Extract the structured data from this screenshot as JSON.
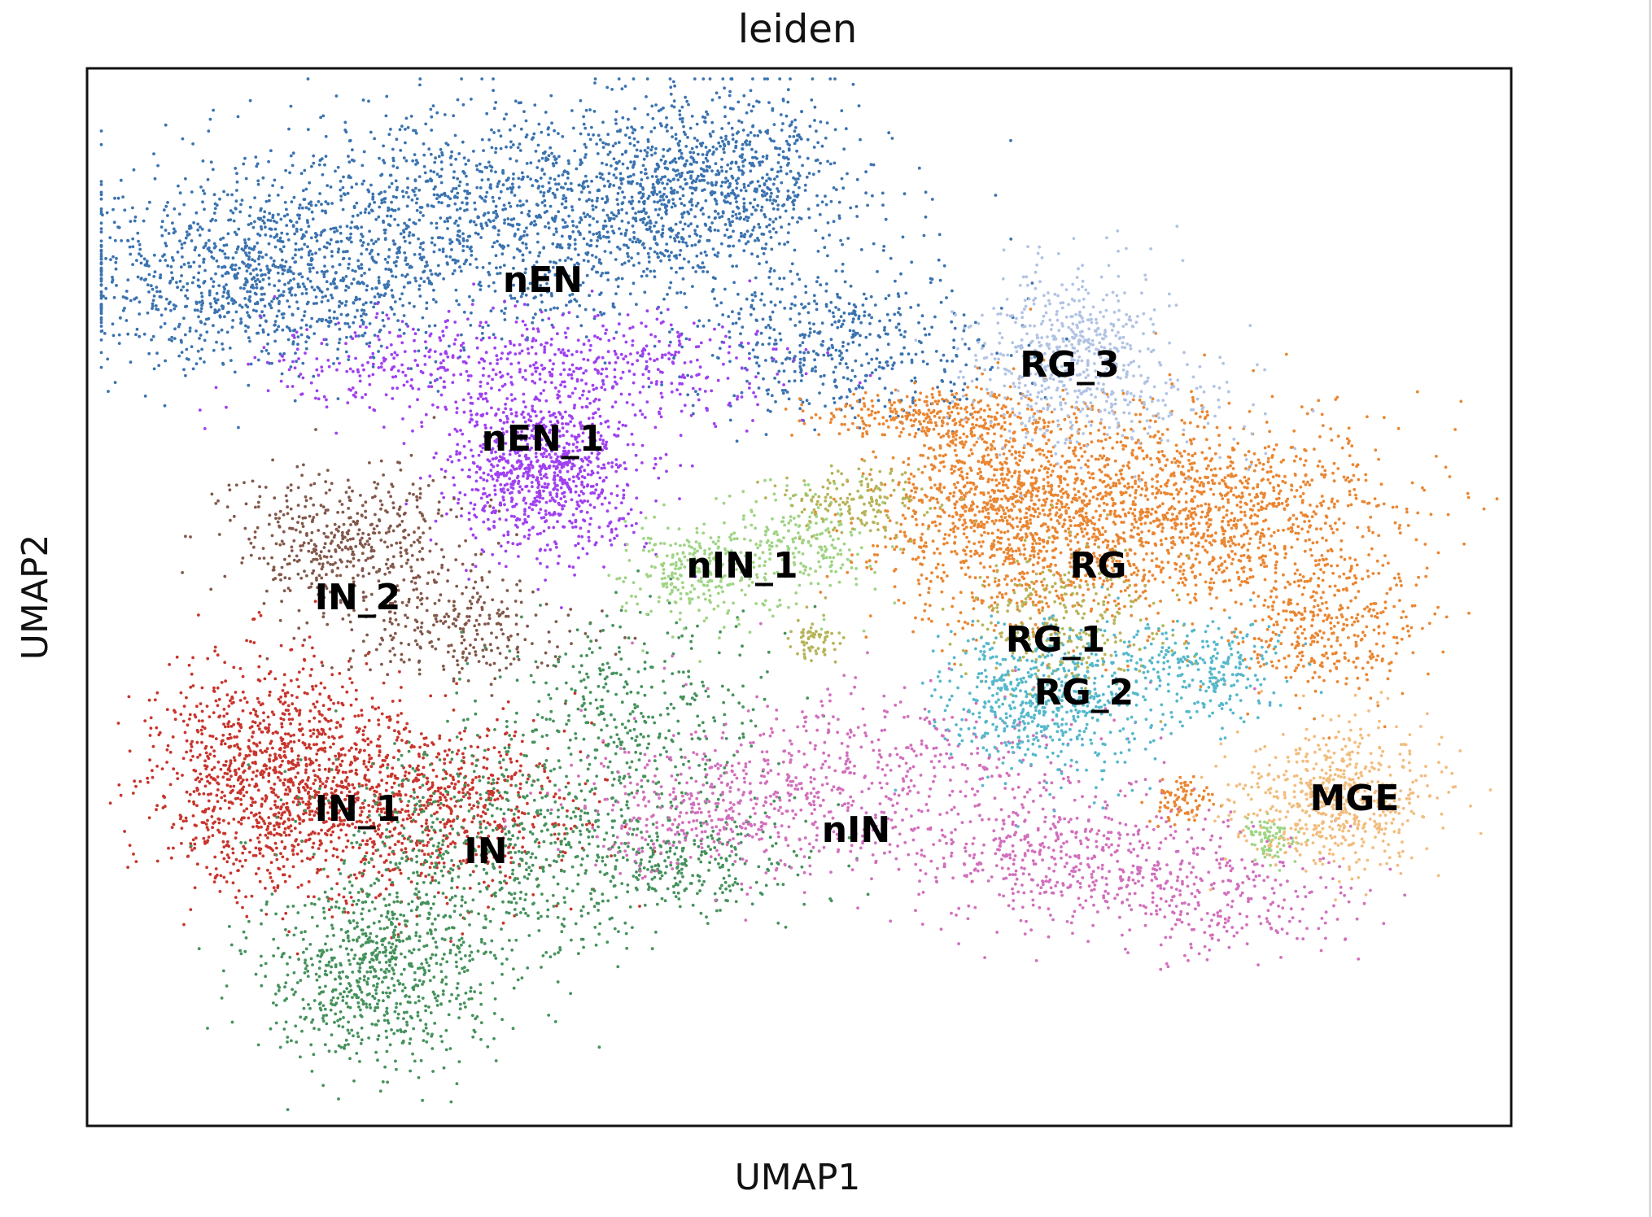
{
  "chart_data": {
    "type": "scatter",
    "title": "leiden",
    "xlabel": "UMAP1",
    "ylabel": "UMAP2",
    "xlim": [
      0,
      100
    ],
    "ylim": [
      0,
      100
    ],
    "grid": false,
    "ticks": false,
    "legend": "on data",
    "series": [
      {
        "name": "nEN",
        "color": "#3b73b0",
        "center": [
          32,
          80
        ],
        "clusters": [
          [
            12,
            80,
            8,
            5,
            1800
          ],
          [
            30,
            86,
            13,
            6,
            3000
          ],
          [
            44,
            90,
            5,
            5,
            1300
          ],
          [
            53,
            74,
            7,
            4,
            900
          ]
        ]
      },
      {
        "name": "nEN_1",
        "color": "#a040f0",
        "center": [
          32,
          65
        ],
        "clusters": [
          [
            32,
            62,
            4,
            4.5,
            1700
          ],
          [
            26,
            72,
            8,
            3,
            700
          ],
          [
            40,
            72,
            6,
            3,
            400
          ]
        ]
      },
      {
        "name": "IN_2",
        "color": "#83584a",
        "center": [
          19,
          50
        ],
        "clusters": [
          [
            18,
            55,
            5,
            4,
            900
          ],
          [
            26,
            47,
            5,
            3,
            500
          ]
        ]
      },
      {
        "name": "IN_1",
        "color": "#c8352c",
        "center": [
          19,
          30
        ],
        "clusters": [
          [
            13,
            33,
            5,
            6,
            2200
          ],
          [
            24,
            30,
            6,
            5,
            1400
          ]
        ]
      },
      {
        "name": "IN",
        "color": "#45925c",
        "center": [
          28,
          26
        ],
        "clusters": [
          [
            20,
            14,
            5,
            5,
            1300
          ],
          [
            28,
            26,
            8,
            7,
            1300
          ],
          [
            38,
            38,
            6,
            6,
            700
          ],
          [
            42,
            25,
            5,
            3,
            500
          ]
        ]
      },
      {
        "name": "nIN_1",
        "color": "#9fd484",
        "center": [
          46,
          53
        ],
        "clusters": [
          [
            43,
            52,
            3,
            3,
            500
          ],
          [
            50,
            55,
            3,
            3,
            400
          ],
          [
            83,
            27,
            1.2,
            1.2,
            150
          ]
        ]
      },
      {
        "name": "nIN",
        "color": "#d26fbd",
        "center": [
          54,
          28
        ],
        "clusters": [
          [
            44,
            30,
            6,
            4,
            700
          ],
          [
            57,
            33,
            9,
            5,
            900
          ],
          [
            69,
            25,
            7,
            3.5,
            900
          ],
          [
            81,
            21,
            5,
            3,
            400
          ]
        ]
      },
      {
        "name": "RG",
        "color": "#ea8632",
        "center": [
          71,
          53
        ],
        "clusters": [
          [
            64,
            58,
            5,
            6,
            2000
          ],
          [
            77,
            58,
            8,
            5.5,
            2600
          ],
          [
            87,
            47,
            4,
            4,
            700
          ],
          [
            59,
            67,
            5,
            1.5,
            500
          ],
          [
            77,
            31,
            1.2,
            1.2,
            150
          ]
        ]
      },
      {
        "name": "RG_1",
        "color": "#b6b458",
        "center": [
          68,
          46
        ],
        "clusters": [
          [
            54,
            59,
            3,
            2,
            300
          ],
          [
            51,
            46,
            1,
            1.2,
            120
          ],
          [
            69,
            48,
            4,
            4,
            500
          ]
        ]
      },
      {
        "name": "RG_2",
        "color": "#55b8cc",
        "center": [
          70,
          41
        ],
        "clusters": [
          [
            67,
            40,
            4,
            4,
            1100
          ],
          [
            78,
            43,
            4,
            3,
            500
          ]
        ]
      },
      {
        "name": "RG_3",
        "color": "#b1c3e4",
        "center": [
          69,
          72
        ],
        "clusters": [
          [
            69,
            73,
            4,
            5,
            1000
          ],
          [
            74,
            68,
            6,
            3,
            200
          ]
        ]
      },
      {
        "name": "MGE",
        "color": "#f2bd7d",
        "center": [
          89,
          31
        ],
        "clusters": [
          [
            88,
            31,
            4,
            4,
            1100
          ]
        ]
      }
    ]
  }
}
